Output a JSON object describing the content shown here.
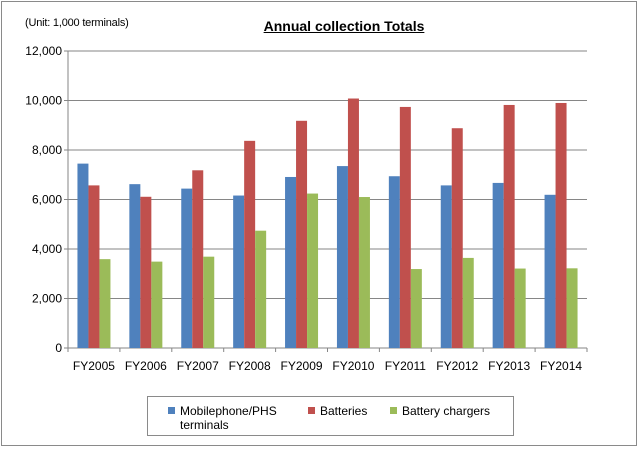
{
  "unit_note": "(Unit: 1,000 terminals)",
  "colors": {
    "mobile": "#4f81bd",
    "batteries": "#c0504d",
    "chargers": "#9bbb59",
    "grid": "#868686",
    "axis": "#868686"
  },
  "chart_data": {
    "type": "bar",
    "title": "Annual collection Totals",
    "xlabel": "",
    "ylabel": "",
    "ylim": [
      0,
      12000
    ],
    "yticks": [
      0,
      2000,
      4000,
      6000,
      8000,
      10000,
      12000
    ],
    "ytick_labels": [
      "0",
      "2,000",
      "4,000",
      "6,000",
      "8,000",
      "10,000",
      "12,000"
    ],
    "grid": true,
    "legend_position": "bottom",
    "categories": [
      "FY2005",
      "FY2006",
      "FY2007",
      "FY2008",
      "FY2009",
      "FY2010",
      "FY2011",
      "FY2012",
      "FY2013",
      "FY2014"
    ],
    "series": [
      {
        "name": "Mobilephone/PHS terminals",
        "color_key": "mobile",
        "values": [
          7450,
          6620,
          6440,
          6160,
          6910,
          7350,
          6940,
          6570,
          6670,
          6190
        ]
      },
      {
        "name": "Batteries",
        "color_key": "batteries",
        "values": [
          6570,
          6110,
          7180,
          8370,
          9180,
          10080,
          9740,
          8880,
          9820,
          9900
        ]
      },
      {
        "name": "Battery chargers",
        "color_key": "chargers",
        "values": [
          3590,
          3490,
          3690,
          4740,
          6240,
          6100,
          3190,
          3640,
          3210,
          3220
        ]
      }
    ]
  }
}
